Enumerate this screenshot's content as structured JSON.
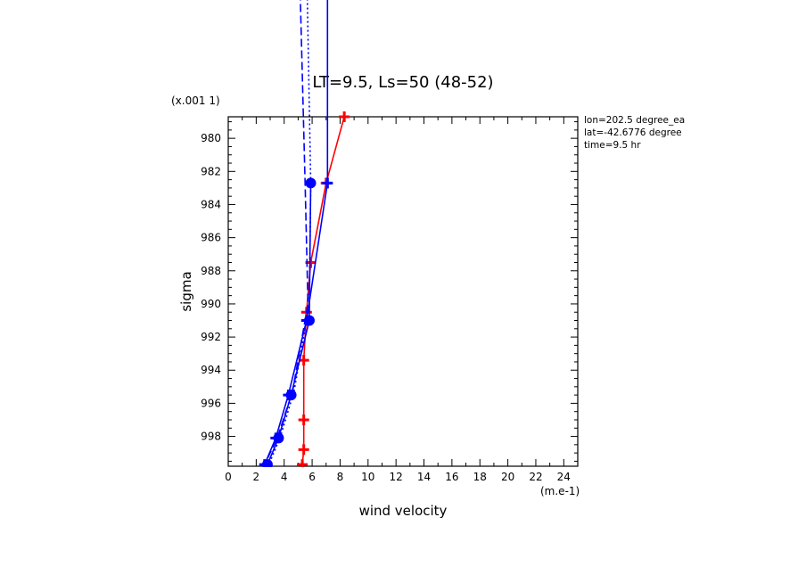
{
  "chart_data": {
    "type": "line",
    "title": "LT=9.5, Ls=50 (48-52)",
    "xlabel": "wind velocity",
    "ylabel": "sigma",
    "x_units": "(m.e-1)",
    "y_units": "(x.001 1)",
    "xlim": [
      0,
      25
    ],
    "ylim": [
      999.8,
      978.7
    ],
    "y_inverted": true,
    "x_ticks": [
      0,
      2,
      4,
      6,
      8,
      10,
      12,
      14,
      16,
      18,
      20,
      22,
      24
    ],
    "y_ticks": [
      980,
      982,
      984,
      986,
      988,
      990,
      992,
      994,
      996,
      998
    ],
    "info_lines": [
      "lon=202.5 degree_ea",
      "lat=-42.6776 degree",
      "time=9.5 hr"
    ],
    "grid": false,
    "series": [
      {
        "color": "#ff0000",
        "style": "solid",
        "marker": "plus",
        "points": [
          [
            8.3,
            978.7
          ],
          [
            7.0,
            982.7
          ],
          [
            5.9,
            987.5
          ],
          [
            5.6,
            990.5
          ],
          [
            5.4,
            993.4
          ],
          [
            5.4,
            997.0
          ],
          [
            5.4,
            998.8
          ],
          [
            5.3,
            999.7
          ]
        ]
      },
      {
        "color": "#0000ff",
        "style": "solid",
        "marker": "plus",
        "points": [
          [
            7.1,
            960.0
          ],
          [
            7.1,
            982.7
          ],
          [
            5.6,
            991.0
          ],
          [
            4.3,
            995.5
          ],
          [
            3.4,
            998.1
          ],
          [
            2.6,
            999.7
          ]
        ]
      },
      {
        "color": "#0000ff",
        "style": "solid",
        "marker": "dot",
        "points": [
          [
            5.9,
            982.7
          ],
          [
            5.8,
            991.0
          ],
          [
            4.5,
            995.5
          ],
          [
            3.6,
            998.1
          ],
          [
            2.8,
            999.7
          ]
        ]
      },
      {
        "color": "#0000ff",
        "style": "dashed",
        "marker": "none",
        "points": [
          [
            4.8,
            960.0
          ],
          [
            5.5,
            982.7
          ],
          [
            5.7,
            990.0
          ],
          [
            4.6,
            995.3
          ],
          [
            3.5,
            998.1
          ],
          [
            2.6,
            999.7
          ]
        ]
      },
      {
        "color": "#0000ff",
        "style": "dotted",
        "marker": "none",
        "points": [
          [
            5.4,
            960.0
          ],
          [
            5.9,
            982.7
          ],
          [
            5.8,
            990.0
          ],
          [
            4.7,
            995.3
          ],
          [
            3.7,
            998.1
          ],
          [
            2.9,
            999.7
          ]
        ]
      }
    ]
  }
}
